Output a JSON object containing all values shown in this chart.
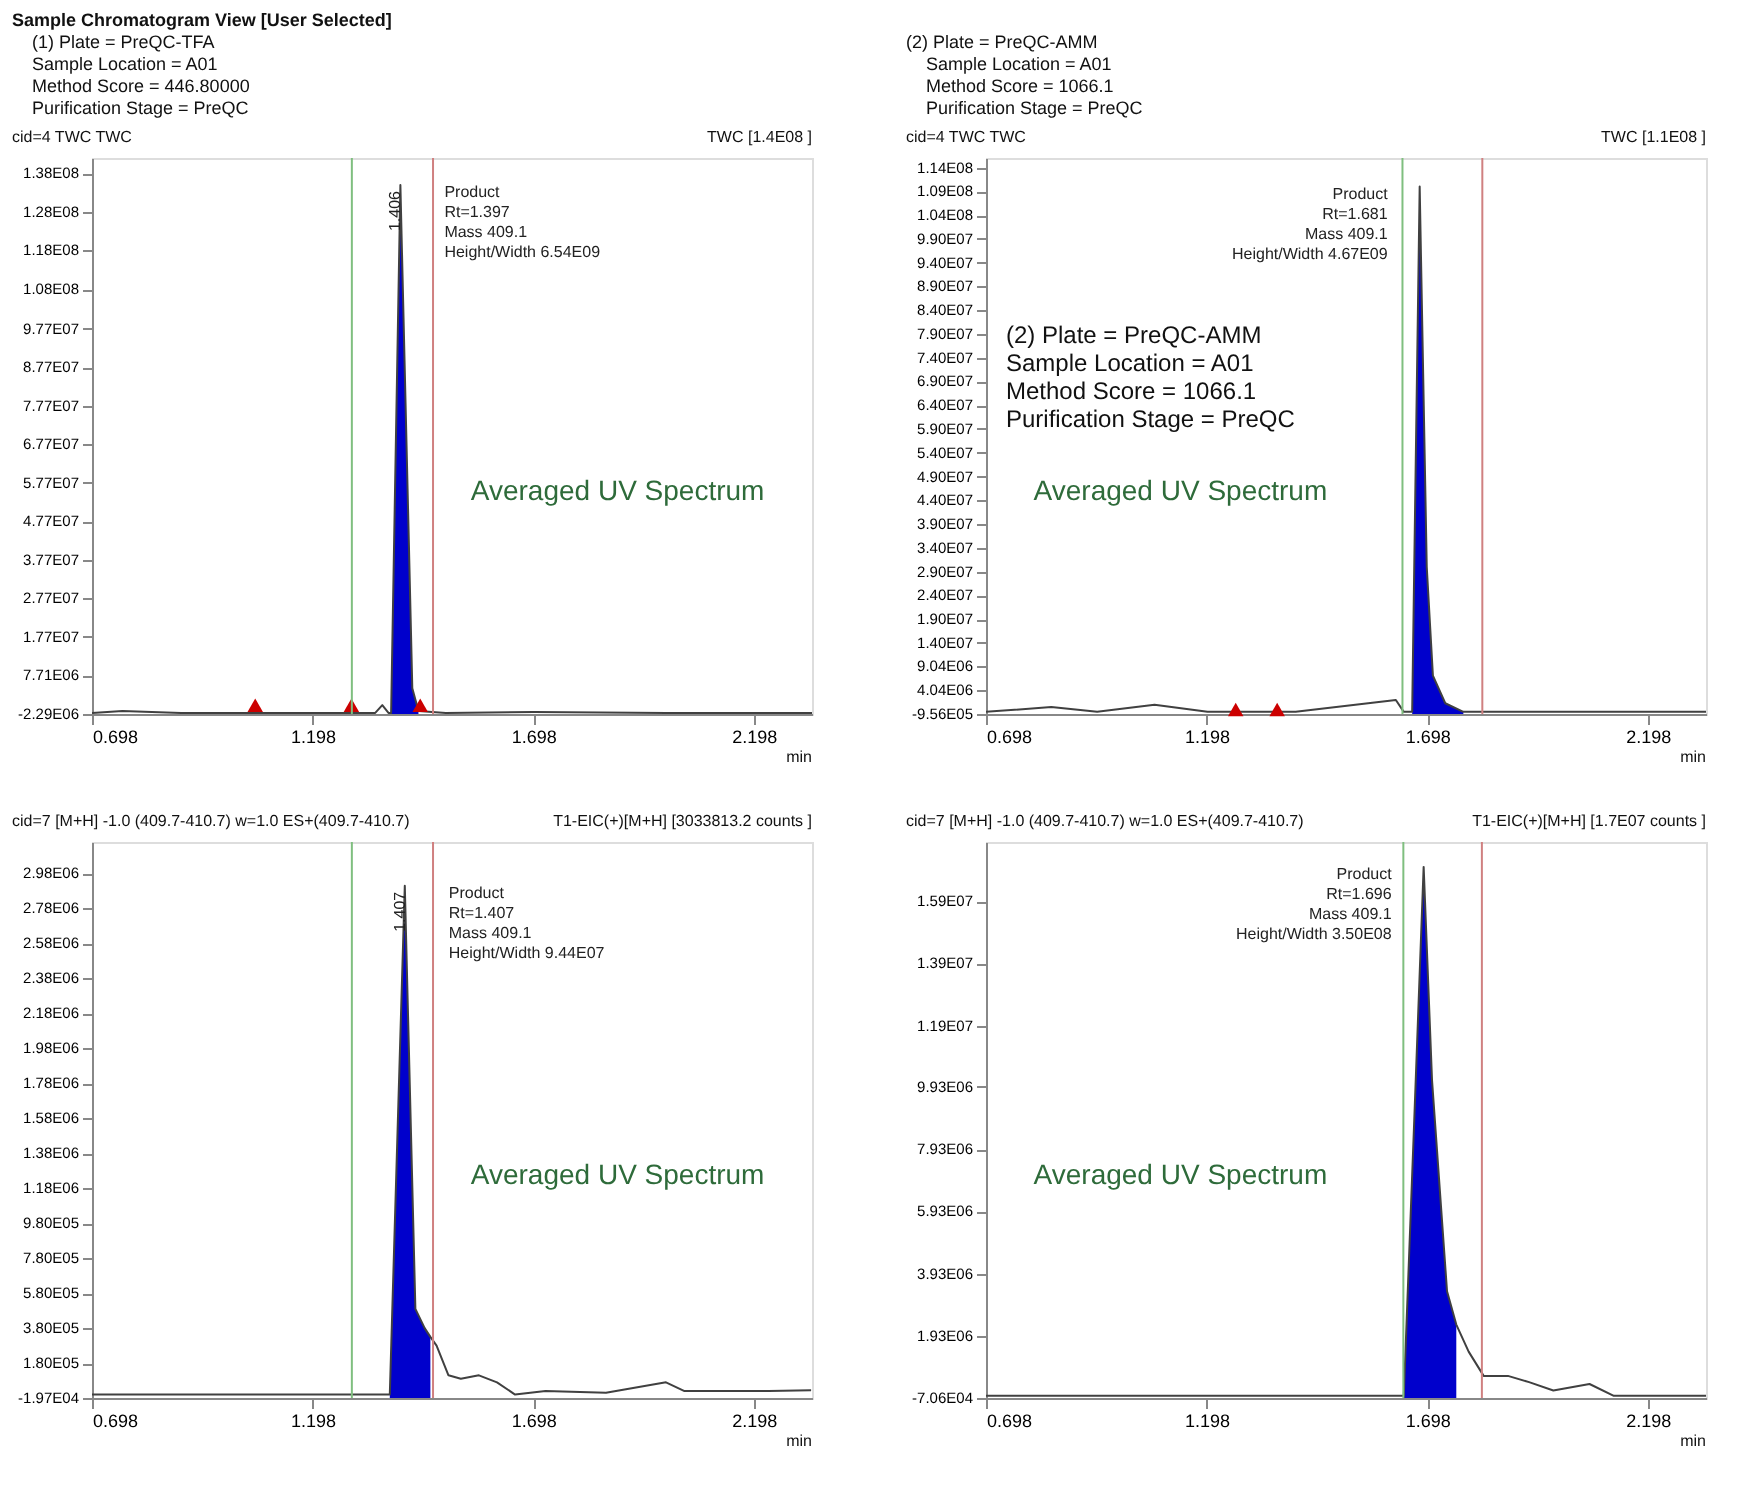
{
  "chart_data": [
    {
      "type": "line",
      "title": "cid=4 TWC TWC",
      "subtitle": "TWC [1.4E08 ]",
      "xlabel": "min",
      "xlim": [
        0.698,
        2.33
      ],
      "xticks": [
        0.698,
        1.198,
        1.698,
        2.198
      ],
      "ylim": [
        -2290000,
        142000000
      ],
      "yticks": [
        {
          "value": -2290000,
          "label": "-2.29E06"
        },
        {
          "value": 7710000,
          "label": "7.71E06"
        },
        {
          "value": 17700000,
          "label": "1.77E07"
        },
        {
          "value": 27700000,
          "label": "2.77E07"
        },
        {
          "value": 37700000,
          "label": "3.77E07"
        },
        {
          "value": 47700000,
          "label": "4.77E07"
        },
        {
          "value": 57700000,
          "label": "5.77E07"
        },
        {
          "value": 67700000,
          "label": "6.77E07"
        },
        {
          "value": 77700000,
          "label": "7.77E07"
        },
        {
          "value": 87700000,
          "label": "8.77E07"
        },
        {
          "value": 97700000,
          "label": "9.77E07"
        },
        {
          "value": 108000000,
          "label": "1.08E08"
        },
        {
          "value": 118000000,
          "label": "1.18E08"
        },
        {
          "value": 128000000,
          "label": "1.28E08"
        },
        {
          "value": 138000000,
          "label": "1.38E08"
        }
      ],
      "grid": false,
      "series": [
        {
          "type": "area",
          "color": "#0000cc",
          "x": [
            1.376,
            1.397,
            1.424,
            1.438
          ],
          "values": [
            -2000000,
            135000000,
            4400000,
            -1500000
          ]
        },
        {
          "color": "#404040",
          "x": [
            0.698,
            0.767,
            0.9,
            1.2,
            1.34,
            1.356,
            1.37,
            1.376,
            1.397,
            1.424,
            1.438,
            1.5,
            1.7,
            2.0,
            2.33
          ],
          "values": [
            -2000000,
            -1500000,
            -2000000,
            -2000000,
            -2000000,
            0,
            -2000000,
            -2000000,
            135000000,
            4400000,
            -1500000,
            -2000000,
            -1800000,
            -2000000,
            -2000000
          ]
        },
        {
          "type": "scatter",
          "marker": "triangle",
          "color": "#cc0000",
          "x": [
            1.068,
            1.286,
            1.442
          ],
          "values": [
            0,
            0,
            0
          ]
        }
      ],
      "ref_lines": [
        {
          "axis": "x",
          "value": 1.287,
          "color": "#7fbf7f"
        },
        {
          "axis": "x",
          "value": 1.471,
          "color": "#d08080"
        }
      ],
      "annotations": [
        "Sample Chromatogram View [User Selected]",
        "(1) Plate = PreQC-TFA",
        "Sample Location = A01",
        "Method Score = 446.80000",
        "Purification Stage = PreQC",
        {
          "text": "1.406",
          "x": 1.397,
          "y": 135000000
        },
        {
          "text": "Product\nRt=1.397\nMass 409.1\nHeight/Width 6.54E09",
          "x": 1.397,
          "y": 135000000
        },
        "Averaged UV Spectrum"
      ]
    },
    {
      "type": "line",
      "title": "cid=4 TWC TWC",
      "subtitle": "TWC [1.1E08 ]",
      "xlabel": "min",
      "xlim": [
        0.698,
        2.33
      ],
      "xticks": [
        0.698,
        1.198,
        1.698,
        2.198
      ],
      "ylim": [
        -956000,
        116000000
      ],
      "yticks": [
        {
          "value": -956000,
          "label": "-9.56E05"
        },
        {
          "value": 4040000,
          "label": "4.04E06"
        },
        {
          "value": 9040000,
          "label": "9.04E06"
        },
        {
          "value": 14000000,
          "label": "1.40E07"
        },
        {
          "value": 19000000,
          "label": "1.90E07"
        },
        {
          "value": 24000000,
          "label": "2.40E07"
        },
        {
          "value": 29000000,
          "label": "2.90E07"
        },
        {
          "value": 34000000,
          "label": "3.40E07"
        },
        {
          "value": 39000000,
          "label": "3.90E07"
        },
        {
          "value": 44000000,
          "label": "4.40E07"
        },
        {
          "value": 49000000,
          "label": "4.90E07"
        },
        {
          "value": 54000000,
          "label": "5.40E07"
        },
        {
          "value": 59000000,
          "label": "5.90E07"
        },
        {
          "value": 64000000,
          "label": "6.40E07"
        },
        {
          "value": 69000000,
          "label": "6.90E07"
        },
        {
          "value": 74000000,
          "label": "7.40E07"
        },
        {
          "value": 79000000,
          "label": "7.90E07"
        },
        {
          "value": 84000000,
          "label": "8.40E07"
        },
        {
          "value": 89000000,
          "label": "8.90E07"
        },
        {
          "value": 94000000,
          "label": "9.40E07"
        },
        {
          "value": 99000000,
          "label": "9.90E07"
        },
        {
          "value": 104000000,
          "label": "1.04E08"
        },
        {
          "value": 109000000,
          "label": "1.09E08"
        },
        {
          "value": 114000000,
          "label": "1.14E08"
        }
      ],
      "grid": false,
      "series": [
        {
          "type": "area",
          "color": "#0000cc",
          "x": [
            1.664,
            1.681,
            1.697,
            1.711,
            1.739,
            1.78
          ],
          "values": [
            -500000,
            110000000,
            30000000,
            7100000,
            1300000,
            -500000
          ]
        },
        {
          "color": "#404040",
          "x": [
            0.698,
            0.846,
            0.95,
            1.08,
            1.2,
            1.4,
            1.627,
            1.645,
            1.664,
            1.681,
            1.697,
            1.711,
            1.739,
            1.78,
            1.9,
            2.33
          ],
          "values": [
            -500000,
            500000,
            -500000,
            1000000,
            -500000,
            -500000,
            2000000,
            -500000,
            -500000,
            110000000,
            30000000,
            7100000,
            1300000,
            -500000,
            -500000,
            -500000
          ]
        },
        {
          "type": "scatter",
          "marker": "triangle",
          "color": "#cc0000",
          "x": [
            1.264,
            1.358
          ],
          "values": [
            0,
            0
          ]
        }
      ],
      "ref_lines": [
        {
          "axis": "x",
          "value": 1.642,
          "color": "#7fbf7f"
        },
        {
          "axis": "x",
          "value": 1.823,
          "color": "#d08080"
        }
      ],
      "annotations": [
        "(2) Plate = PreQC-AMM",
        "Sample Location = A01",
        "Method Score = 1066.1",
        "Purification Stage = PreQC",
        "(2) Plate = PreQC-AMM\n      Sample Location = A01\n      Method Score = 1066.1\n      Purification Stage = PreQC",
        {
          "text": "Product\nRt=1.681\nMass 409.1\nHeight/Width 4.67E09",
          "x": 1.681,
          "y": 110000000
        },
        "Averaged UV Spectrum"
      ]
    },
    {
      "type": "line",
      "title": "cid=7  [M+H] -1.0 (409.7-410.7) w=1.0 ES+(409.7-410.7)",
      "subtitle": "T1-EIC(+)[M+H] [3033813.2 counts ]",
      "xlabel": "min",
      "xlim": [
        0.698,
        2.33
      ],
      "xticks": [
        0.698,
        1.198,
        1.698,
        2.198
      ],
      "ylim": [
        -19700,
        3160000
      ],
      "yticks": [
        {
          "value": -19700,
          "label": "-1.97E04"
        },
        {
          "value": 180000,
          "label": "1.80E05"
        },
        {
          "value": 380000,
          "label": "3.80E05"
        },
        {
          "value": 580000,
          "label": "5.80E05"
        },
        {
          "value": 780000,
          "label": "7.80E05"
        },
        {
          "value": 980000,
          "label": "9.80E05"
        },
        {
          "value": 1180000,
          "label": "1.18E06"
        },
        {
          "value": 1380000,
          "label": "1.38E06"
        },
        {
          "value": 1580000,
          "label": "1.58E06"
        },
        {
          "value": 1780000,
          "label": "1.78E06"
        },
        {
          "value": 1980000,
          "label": "1.98E06"
        },
        {
          "value": 2180000,
          "label": "2.18E06"
        },
        {
          "value": 2380000,
          "label": "2.38E06"
        },
        {
          "value": 2580000,
          "label": "2.58E06"
        },
        {
          "value": 2780000,
          "label": "2.78E06"
        },
        {
          "value": 2980000,
          "label": "2.98E06"
        }
      ],
      "grid": false,
      "series": [
        {
          "type": "area",
          "color": "#0000cc",
          "x": [
            1.373,
            1.407,
            1.431,
            1.452,
            1.465
          ],
          "values": [
            0,
            2910000,
            490000,
            380000,
            330000
          ]
        },
        {
          "color": "#404040",
          "x": [
            0.698,
            1.287,
            1.373,
            1.407,
            1.431,
            1.452,
            1.465,
            1.479,
            1.506,
            1.534,
            1.575,
            1.616,
            1.657,
            1.726,
            1.863,
            1.999,
            2.041,
            2.137,
            2.232,
            2.328
          ],
          "values": [
            0,
            0,
            0,
            2910000,
            490000,
            380000,
            330000,
            280000,
            110000,
            90000,
            110000,
            70000,
            0,
            20000,
            10000,
            70000,
            20000,
            20000,
            20000,
            25000
          ]
        }
      ],
      "ref_lines": [
        {
          "axis": "x",
          "value": 1.287,
          "color": "#7fbf7f"
        },
        {
          "axis": "x",
          "value": 1.471,
          "color": "#d08080"
        }
      ],
      "annotations": [
        {
          "text": "1.407",
          "x": 1.407,
          "y": 2910000
        },
        {
          "text": "Product\nRt=1.407\nMass 409.1\nHeight/Width 9.44E07",
          "x": 1.407,
          "y": 2910000
        },
        "Averaged UV Spectrum"
      ]
    },
    {
      "type": "line",
      "title": "cid=7  [M+H] -1.0 (409.7-410.7) w=1.0 ES+(409.7-410.7)",
      "subtitle": "T1-EIC(+)[M+H] [1.7E07 counts ]",
      "xlabel": "min",
      "xlim": [
        0.698,
        2.33
      ],
      "xticks": [
        0.698,
        1.198,
        1.698,
        2.198
      ],
      "ylim": [
        -70600,
        17800000
      ],
      "yticks": [
        {
          "value": -70600,
          "label": "-7.06E04"
        },
        {
          "value": 1930000,
          "label": "1.93E06"
        },
        {
          "value": 3930000,
          "label": "3.93E06"
        },
        {
          "value": 5930000,
          "label": "5.93E06"
        },
        {
          "value": 7930000,
          "label": "7.93E06"
        },
        {
          "value": 9930000,
          "label": "9.93E06"
        },
        {
          "value": 11900000,
          "label": "1.19E07"
        },
        {
          "value": 13900000,
          "label": "1.39E07"
        },
        {
          "value": 15900000,
          "label": "1.59E07"
        }
      ],
      "grid": false,
      "series": [
        {
          "type": "area",
          "color": "#0000cc",
          "x": [
            1.645,
            1.668,
            1.69,
            1.709,
            1.743,
            1.764
          ],
          "values": [
            0,
            8600000,
            17000000,
            10140000,
            3360000,
            2290000
          ]
        },
        {
          "color": "#404040",
          "x": [
            0.698,
            1.645,
            1.668,
            1.69,
            1.709,
            1.743,
            1.764,
            1.792,
            1.826,
            1.881,
            1.929,
            1.984,
            2.066,
            2.121,
            2.203,
            2.33
          ],
          "values": [
            0,
            0,
            8600000,
            17000000,
            10140000,
            3360000,
            2290000,
            1420000,
            640000,
            640000,
            440000,
            170000,
            380000,
            0,
            0,
            0
          ]
        }
      ],
      "ref_lines": [
        {
          "axis": "x",
          "value": 1.644,
          "color": "#7fbf7f"
        },
        {
          "axis": "x",
          "value": 1.822,
          "color": "#d08080"
        }
      ],
      "annotations": [
        {
          "text": "Product\nRt=1.696\nMass 409.1\nHeight/Width 3.50E08",
          "x": 1.69,
          "y": 17000000
        },
        "Averaged UV Spectrum"
      ]
    }
  ]
}
